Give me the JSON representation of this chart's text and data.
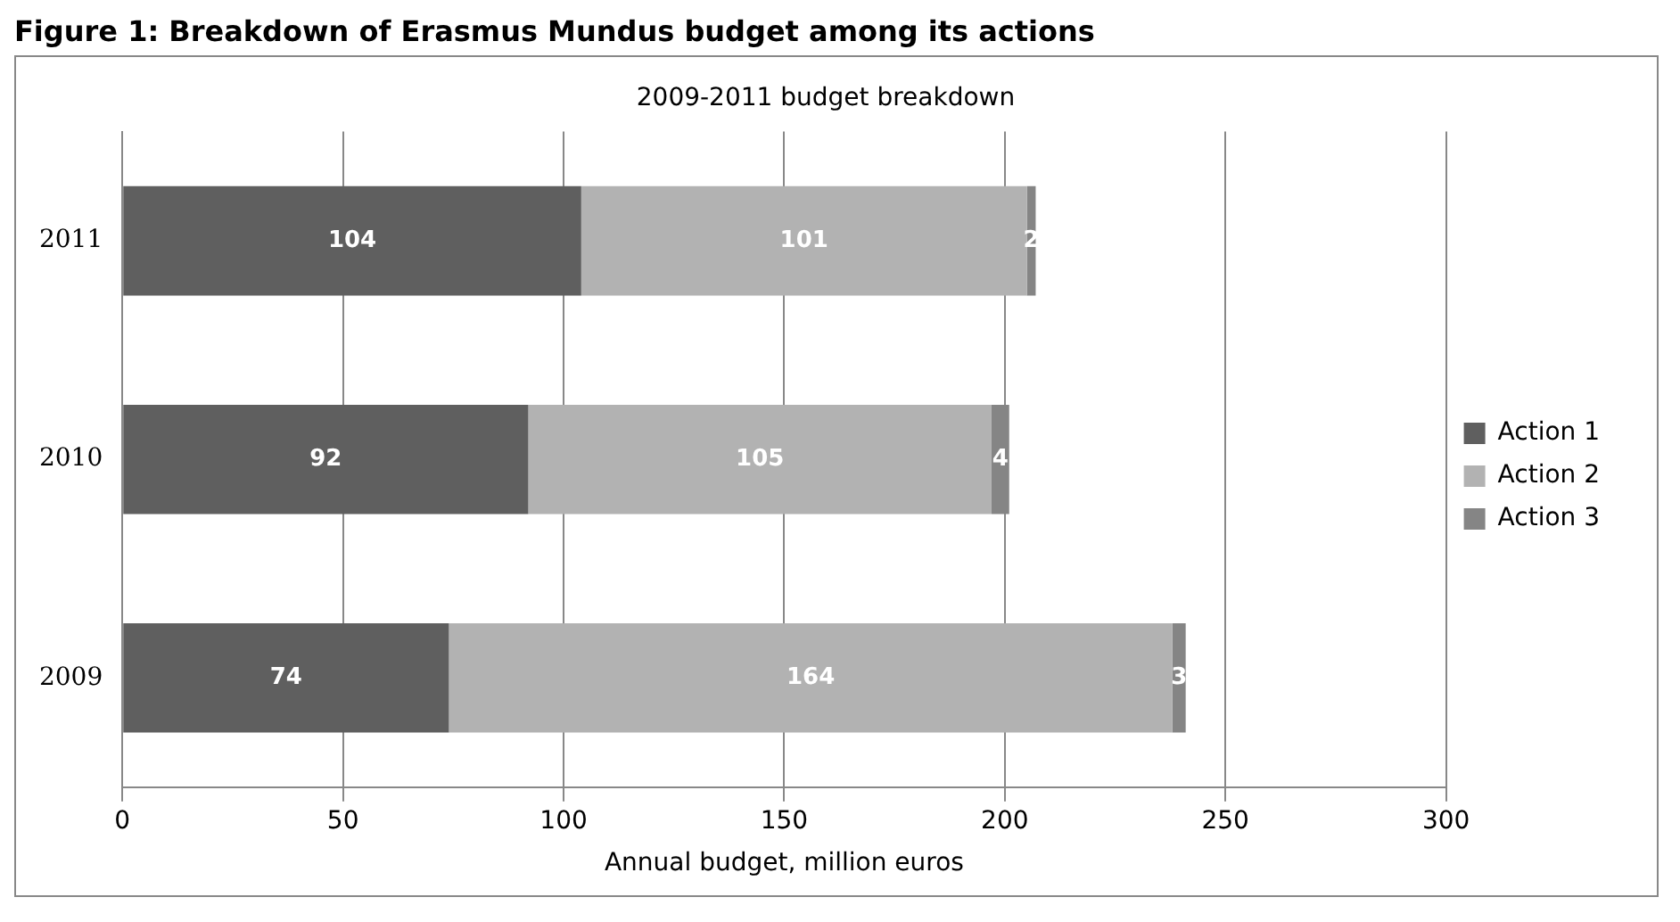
{
  "chart_data": {
    "type": "bar",
    "title": "Figure 1: Breakdown of Erasmus Mundus budget among its actions",
    "subtitle": "2009-2011 budget breakdown",
    "xlabel": "Annual budget, million euros",
    "orientation": "horizontal",
    "stacked": true,
    "categories": [
      "2011",
      "2010",
      "2009"
    ],
    "series": [
      {
        "name": "Action 1",
        "color": "#5f5f5f",
        "values": [
          104,
          92,
          74
        ]
      },
      {
        "name": "Action 2",
        "color": "#b2b2b2",
        "values": [
          101,
          105,
          164
        ]
      },
      {
        "name": "Action 3",
        "color": "#858585",
        "values": [
          2,
          4,
          3
        ]
      }
    ],
    "xlim": [
      0,
      300
    ],
    "xticks": [
      0,
      50,
      100,
      150,
      200,
      250,
      300
    ],
    "grid": "x",
    "legend": "right",
    "data_labels": true
  }
}
